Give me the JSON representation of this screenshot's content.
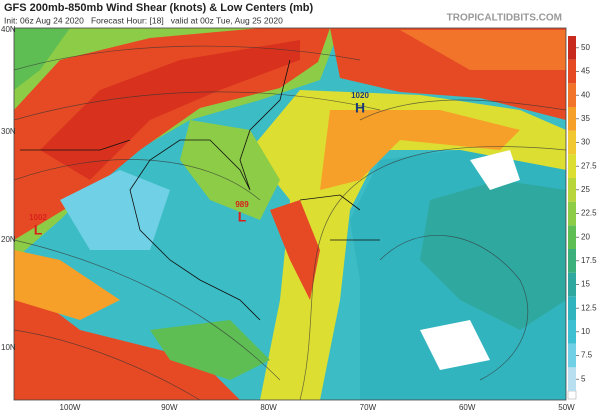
{
  "header": {
    "title": "GFS 200mb-850mb Wind Shear (knots) & Low Centers (mb)",
    "subtitle": "Init: 06z Aug 24 2020   Forecast Hour: [18]   valid at 00z Tue, Aug 25 2020",
    "site": "TROPICALTIDBITS.COM"
  },
  "map": {
    "lat_labels": [
      "40N",
      "30N",
      "20N",
      "10N"
    ],
    "lon_labels": [
      "100W",
      "90W",
      "80W",
      "70W",
      "60W",
      "50W"
    ],
    "centers": [
      {
        "pressure": 1002,
        "letter": "L",
        "color": "#d8201c"
      },
      {
        "pressure": 989,
        "letter": "L",
        "color": "#d8201c"
      },
      {
        "pressure": 1020,
        "letter": "H",
        "color": "#1c3a78"
      }
    ]
  },
  "colorbar": {
    "ticks": [
      5,
      7.5,
      10,
      12.5,
      15,
      17.5,
      20,
      22.5,
      25,
      27.5,
      30,
      35,
      40,
      45,
      50
    ],
    "colors": [
      "#b8dff0",
      "#6fd0e6",
      "#3cc0d2",
      "#32b4be",
      "#2fa8a0",
      "#3cb07a",
      "#5ebe54",
      "#8ccc46",
      "#b8d63c",
      "#dcde32",
      "#f2c832",
      "#f6a02a",
      "#f2742a",
      "#e64a24",
      "#c82a1e"
    ]
  }
}
